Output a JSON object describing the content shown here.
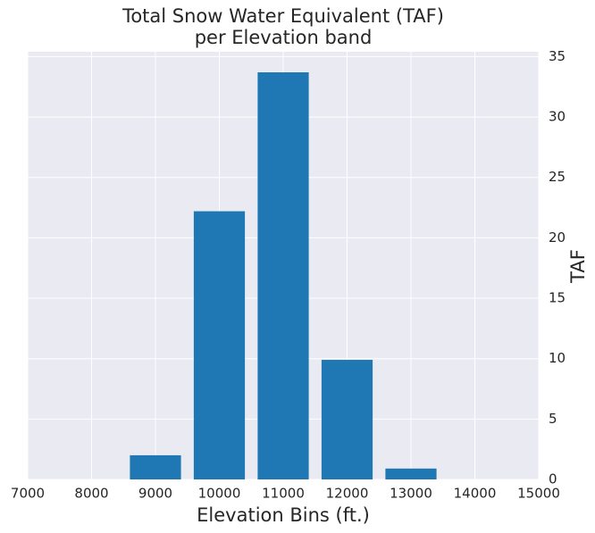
{
  "chart_data": {
    "type": "bar",
    "title": [
      "Total Snow Water Equivalent (TAF)",
      "per Elevation band"
    ],
    "x_label": "Elevation Bins (ft.)",
    "y_label": "TAF",
    "x": [
      9000,
      10000,
      11000,
      12000,
      13000
    ],
    "values": [
      2.0,
      22.2,
      33.7,
      9.9,
      0.9
    ],
    "color": "#1f77b4",
    "xlim": [
      7000,
      15000
    ],
    "xticks": [
      7000,
      8000,
      9000,
      10000,
      11000,
      12000,
      13000,
      14000,
      15000
    ],
    "ylim": [
      0,
      35.4
    ],
    "yticks": [
      0,
      5,
      10,
      15,
      20,
      25,
      30,
      35
    ],
    "y_axis_side": "right",
    "grid": true
  }
}
